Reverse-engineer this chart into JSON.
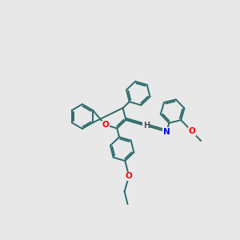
{
  "bg_color": "#e8e8e8",
  "bond_color": "#2d6b6b",
  "atom_colors": {
    "O": "#ff0000",
    "N": "#0000ee",
    "H": "#555555",
    "C": "#2d6b6b"
  },
  "line_width": 1.4,
  "figsize": [
    3.0,
    3.0
  ],
  "dpi": 100,
  "xlim": [
    0,
    10
  ],
  "ylim": [
    0,
    10
  ]
}
